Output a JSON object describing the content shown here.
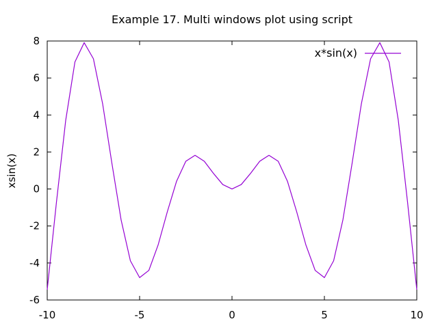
{
  "chart_data": {
    "type": "line",
    "title": "Example 17. Multi windows plot using script",
    "xlabel": "",
    "ylabel": "xsin(x)",
    "xlim": [
      -10,
      10
    ],
    "ylim": [
      -6,
      8
    ],
    "x_ticks": [
      -10,
      -5,
      0,
      5,
      10
    ],
    "y_ticks": [
      -6,
      -4,
      -2,
      0,
      2,
      4,
      6,
      8
    ],
    "grid": false,
    "legend_position": "top-right",
    "series": [
      {
        "name": "x*sin(x)",
        "color": "#9400d3",
        "x": [
          -10,
          -9.5,
          -9,
          -8.5,
          -8,
          -7.5,
          -7,
          -6.5,
          -6,
          -5.5,
          -5,
          -4.5,
          -4,
          -3.5,
          -3,
          -2.5,
          -2,
          -1.5,
          -1,
          -0.5,
          0,
          0.5,
          1,
          1.5,
          2,
          2.5,
          3,
          3.5,
          4,
          4.5,
          5,
          5.5,
          6,
          6.5,
          7,
          7.5,
          8,
          8.5,
          9,
          9.5,
          10
        ],
        "values": [
          -5.44,
          -0.71,
          3.71,
          6.87,
          7.91,
          7.04,
          4.6,
          1.39,
          -1.68,
          -3.88,
          -4.79,
          -4.4,
          -3.03,
          -1.23,
          0.42,
          1.5,
          1.82,
          1.5,
          0.84,
          0.24,
          0,
          0.24,
          0.84,
          1.5,
          1.82,
          1.5,
          0.42,
          -1.23,
          -3.03,
          -4.4,
          -4.79,
          -3.88,
          -1.68,
          1.39,
          4.6,
          7.04,
          7.91,
          6.87,
          3.71,
          -0.71,
          -5.44
        ]
      }
    ]
  }
}
